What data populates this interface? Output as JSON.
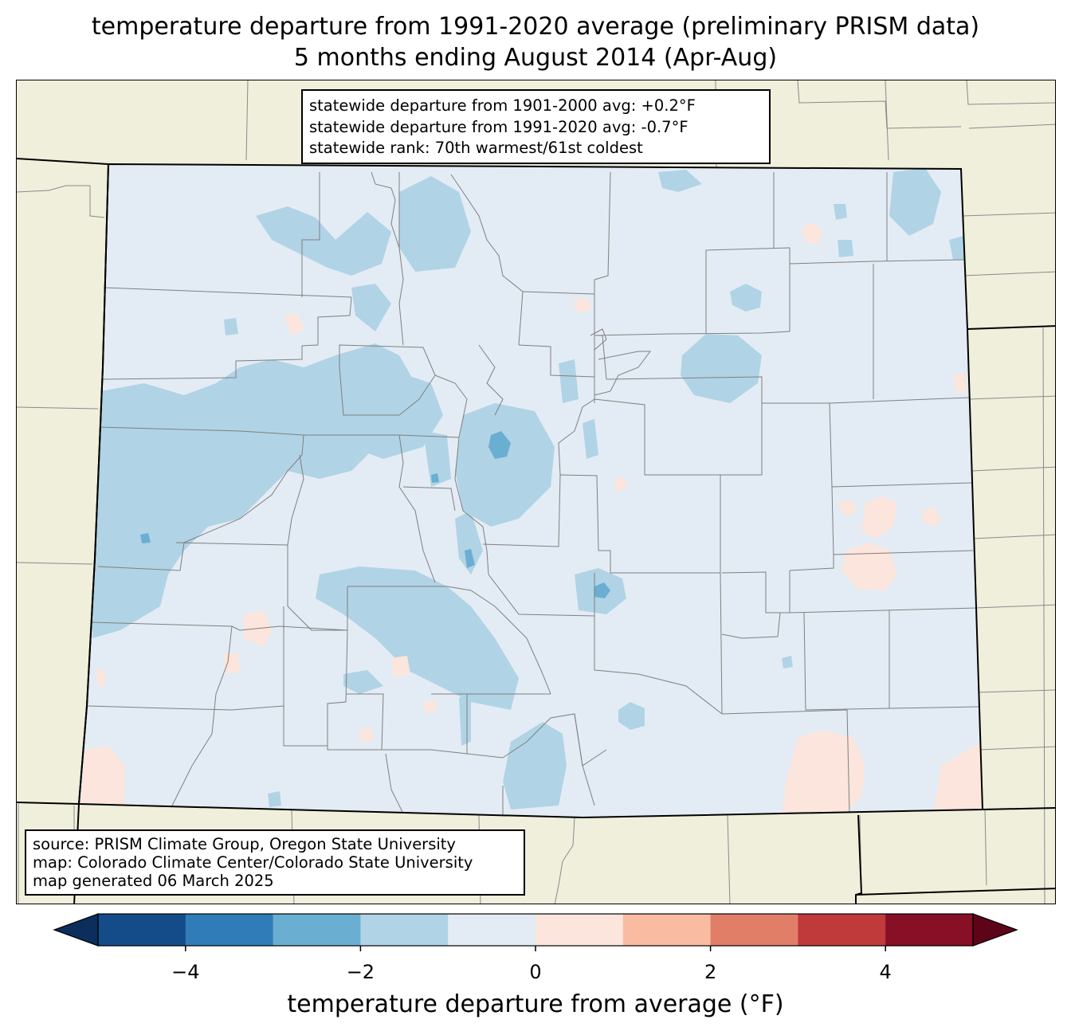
{
  "title": {
    "line1": "temperature departure from 1991-2020 average (preliminary PRISM data)",
    "line2": "5 months ending August 2014 (Apr-Aug)"
  },
  "stats_box": {
    "line1": "statewide departure from 1901-2000 avg: +0.2°F",
    "line2": "statewide departure from 1991-2020 avg: -0.7°F",
    "line3": "statewide rank: 70th warmest/61st coldest"
  },
  "source_box": {
    "line1": "source: PRISM Climate Group, Oregon State University",
    "line2": "map: Colorado Climate Center/Colorado State University",
    "line3": "map generated 06 March 2025"
  },
  "colors": {
    "land_background": "#efefdc",
    "bin_0_to_neg1": "#e3ecf4",
    "bin_neg1_to_neg2": "#b1d3e6",
    "bin_neg2_to_neg3": "#6aaed2",
    "bin_0_to_1": "#fbe5dc",
    "bin_1_to_2": "#f9bca3"
  },
  "colorbar": {
    "label": "temperature departure from average (°F)",
    "ticks": [
      "−4",
      "−2",
      "0",
      "2",
      "4"
    ],
    "tick_values": [
      -4,
      -2,
      0,
      2,
      4
    ],
    "range": [
      -5,
      5
    ],
    "bins": [
      {
        "from": -5,
        "to": -4,
        "color": "#144c8a"
      },
      {
        "from": -4,
        "to": -3,
        "color": "#2f7cb8"
      },
      {
        "from": -3,
        "to": -2,
        "color": "#6aaed2"
      },
      {
        "from": -2,
        "to": -1,
        "color": "#b1d3e6"
      },
      {
        "from": -1,
        "to": 0,
        "color": "#e3ecf4"
      },
      {
        "from": 0,
        "to": 1,
        "color": "#fbe5dc"
      },
      {
        "from": 1,
        "to": 2,
        "color": "#f9bca3"
      },
      {
        "from": 2,
        "to": 3,
        "color": "#e17e67"
      },
      {
        "from": 3,
        "to": 4,
        "color": "#c0393b"
      },
      {
        "from": 4,
        "to": 5,
        "color": "#870f26"
      }
    ],
    "under_color": "#0b2e5c",
    "over_color": "#5e0419"
  }
}
